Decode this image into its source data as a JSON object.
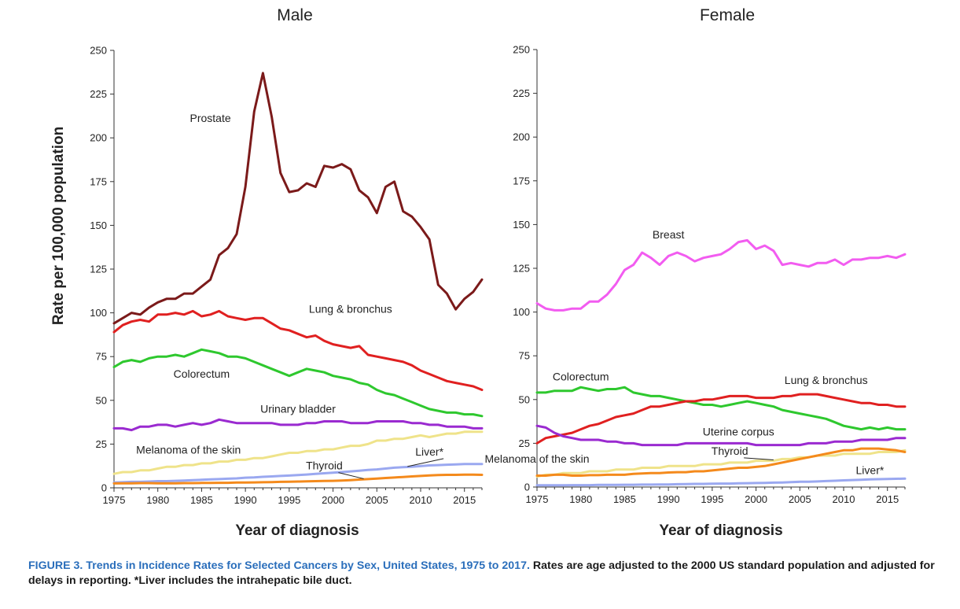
{
  "y_axis_title": "Rate per 100,000 population",
  "caption": {
    "figure_label": "FIGURE 3.",
    "title": "Trends in Incidence Rates for Selected Cancers by Sex, United States, 1975 to 2017.",
    "text": "Rates are age adjusted to the 2000 US standard population and adjusted for delays in reporting. *Liver includes the intrahepatic bile duct."
  },
  "chart_data": [
    {
      "type": "line",
      "title": "Male",
      "xlabel": "Year of diagnosis",
      "ylabel": "Rate per 100,000 population",
      "xlim": [
        1975,
        2017
      ],
      "ylim": [
        0,
        250
      ],
      "x_ticks": [
        1975,
        1980,
        1985,
        1990,
        1995,
        2000,
        2005,
        2010,
        2015
      ],
      "y_ticks": [
        0,
        25,
        50,
        75,
        100,
        125,
        150,
        175,
        200,
        225,
        250
      ],
      "grid": false,
      "legend": "none",
      "x": [
        1975,
        1976,
        1977,
        1978,
        1979,
        1980,
        1981,
        1982,
        1983,
        1984,
        1985,
        1986,
        1987,
        1988,
        1989,
        1990,
        1991,
        1992,
        1993,
        1994,
        1995,
        1996,
        1997,
        1998,
        1999,
        2000,
        2001,
        2002,
        2003,
        2004,
        2005,
        2006,
        2007,
        2008,
        2009,
        2010,
        2011,
        2012,
        2013,
        2014,
        2015,
        2016,
        2017
      ],
      "series": [
        {
          "name": "Prostate",
          "color": "#7b1a1a",
          "values": [
            94,
            97,
            100,
            99,
            103,
            106,
            108,
            108,
            111,
            111,
            115,
            119,
            133,
            137,
            145,
            172,
            215,
            237,
            212,
            180,
            169,
            170,
            174,
            172,
            184,
            183,
            185,
            182,
            170,
            166,
            157,
            172,
            175,
            158,
            155,
            149,
            142,
            116,
            111,
            102,
            108,
            112,
            119
          ]
        },
        {
          "name": "Lung & bronchus",
          "color": "#e02020",
          "values": [
            89,
            93,
            95,
            96,
            95,
            99,
            99,
            100,
            99,
            101,
            98,
            99,
            101,
            98,
            97,
            96,
            97,
            97,
            94,
            91,
            90,
            88,
            86,
            87,
            84,
            82,
            81,
            80,
            81,
            76,
            75,
            74,
            73,
            72,
            70,
            67,
            65,
            63,
            61,
            60,
            59,
            58,
            56
          ]
        },
        {
          "name": "Colorectum",
          "color": "#2ec82e",
          "values": [
            69,
            72,
            73,
            72,
            74,
            75,
            75,
            76,
            75,
            77,
            79,
            78,
            77,
            75,
            75,
            74,
            72,
            70,
            68,
            66,
            64,
            66,
            68,
            67,
            66,
            64,
            63,
            62,
            60,
            59,
            56,
            54,
            53,
            51,
            49,
            47,
            45,
            44,
            43,
            43,
            42,
            42,
            41
          ]
        },
        {
          "name": "Urinary bladder",
          "color": "#9a2ad0",
          "values": [
            34,
            34,
            33,
            35,
            35,
            36,
            36,
            35,
            36,
            37,
            36,
            37,
            39,
            38,
            37,
            37,
            37,
            37,
            37,
            36,
            36,
            36,
            37,
            37,
            38,
            38,
            38,
            37,
            37,
            37,
            38,
            38,
            38,
            38,
            37,
            37,
            36,
            36,
            35,
            35,
            35,
            34,
            34
          ]
        },
        {
          "name": "Melanoma of the skin",
          "color": "#efe38a",
          "values": [
            8,
            9,
            9,
            10,
            10,
            11,
            12,
            12,
            13,
            13,
            14,
            14,
            15,
            15,
            16,
            16,
            17,
            17,
            18,
            19,
            20,
            20,
            21,
            21,
            22,
            22,
            23,
            24,
            24,
            25,
            27,
            27,
            28,
            28,
            29,
            30,
            29,
            30,
            31,
            31,
            32,
            32,
            32
          ]
        },
        {
          "name": "Liver*",
          "color": "#9aa8f0",
          "values": [
            3,
            3.2,
            3.4,
            3.4,
            3.6,
            3.8,
            3.8,
            4,
            4.2,
            4.4,
            4.6,
            4.8,
            5,
            5.2,
            5.4,
            5.8,
            6,
            6.3,
            6.5,
            6.8,
            7,
            7.3,
            7.6,
            8,
            8.3,
            8.7,
            9,
            9.4,
            9.8,
            10.2,
            10.5,
            11,
            11.5,
            11.8,
            12,
            12.4,
            12.8,
            13,
            13.2,
            13.4,
            13.6,
            13.6,
            13.6
          ]
        },
        {
          "name": "Thyroid",
          "color": "#f48a1c",
          "values": [
            2.5,
            2.6,
            2.6,
            2.7,
            2.7,
            2.6,
            2.6,
            2.6,
            2.7,
            2.7,
            2.8,
            2.8,
            2.9,
            2.9,
            3,
            3,
            3.1,
            3.2,
            3.3,
            3.4,
            3.5,
            3.6,
            3.7,
            3.8,
            3.9,
            4,
            4.2,
            4.4,
            4.7,
            5,
            5.3,
            5.6,
            5.9,
            6.2,
            6.5,
            6.8,
            7.1,
            7.3,
            7.4,
            7.4,
            7.5,
            7.5,
            7.4
          ]
        }
      ],
      "annotations": [
        {
          "text": "Prostate",
          "x": 1986,
          "y": 209
        },
        {
          "text": "Lung & bronchus",
          "x": 2002,
          "y": 100
        },
        {
          "text": "Colorectum",
          "x": 1985,
          "y": 63
        },
        {
          "text": "Urinary bladder",
          "x": 1996,
          "y": 43
        },
        {
          "text": "Melanoma of the skin",
          "x": 1983.5,
          "y": 19.5
        },
        {
          "text": "Liver*",
          "x": 2011,
          "y": 18.5
        },
        {
          "text": "Thyroid",
          "x": 1999,
          "y": 10.5
        }
      ]
    },
    {
      "type": "line",
      "title": "Female",
      "xlabel": "Year of diagnosis",
      "ylabel": "",
      "xlim": [
        1975,
        2017
      ],
      "ylim": [
        0,
        250
      ],
      "x_ticks": [
        1975,
        1980,
        1985,
        1990,
        1995,
        2000,
        2005,
        2010,
        2015
      ],
      "y_ticks": [
        0,
        25,
        50,
        75,
        100,
        125,
        150,
        175,
        200,
        225,
        250
      ],
      "grid": false,
      "legend": "none",
      "x": [
        1975,
        1976,
        1977,
        1978,
        1979,
        1980,
        1981,
        1982,
        1983,
        1984,
        1985,
        1986,
        1987,
        1988,
        1989,
        1990,
        1991,
        1992,
        1993,
        1994,
        1995,
        1996,
        1997,
        1998,
        1999,
        2000,
        2001,
        2002,
        2003,
        2004,
        2005,
        2006,
        2007,
        2008,
        2009,
        2010,
        2011,
        2012,
        2013,
        2014,
        2015,
        2016,
        2017
      ],
      "series": [
        {
          "name": "Breast",
          "color": "#f25cf0",
          "values": [
            105,
            102,
            101,
            101,
            102,
            102,
            106,
            106,
            110,
            116,
            124,
            127,
            134,
            131,
            127,
            132,
            134,
            132,
            129,
            131,
            132,
            133,
            136,
            140,
            141,
            136,
            138,
            135,
            127,
            128,
            127,
            126,
            128,
            128,
            130,
            127,
            130,
            130,
            131,
            131,
            132,
            131,
            133
          ]
        },
        {
          "name": "Colorectum",
          "color": "#2ec82e",
          "values": [
            54,
            54,
            55,
            55,
            55,
            57,
            56,
            55,
            56,
            56,
            57,
            54,
            53,
            52,
            52,
            51,
            50,
            49,
            48,
            47,
            47,
            46,
            47,
            48,
            49,
            48,
            47,
            46,
            44,
            43,
            42,
            41,
            40,
            39,
            37,
            35,
            34,
            33,
            34,
            33,
            34,
            33,
            33
          ]
        },
        {
          "name": "Lung & bronchus",
          "color": "#e02020",
          "values": [
            25,
            28,
            29,
            30,
            31,
            33,
            35,
            36,
            38,
            40,
            41,
            42,
            44,
            46,
            46,
            47,
            48,
            49,
            49,
            50,
            50,
            51,
            52,
            52,
            52,
            51,
            51,
            51,
            52,
            52,
            53,
            53,
            53,
            52,
            51,
            50,
            49,
            48,
            48,
            47,
            47,
            46,
            46
          ]
        },
        {
          "name": "Uterine corpus",
          "color": "#9a2ad0",
          "values": [
            35,
            34,
            31,
            29,
            28,
            27,
            27,
            27,
            26,
            26,
            25,
            25,
            24,
            24,
            24,
            24,
            24,
            25,
            25,
            25,
            25,
            25,
            25,
            25,
            25,
            24,
            24,
            24,
            24,
            24,
            24,
            25,
            25,
            25,
            26,
            26,
            26,
            27,
            27,
            27,
            27,
            28,
            28
          ]
        },
        {
          "name": "Melanoma of the skin",
          "color": "#efe38a",
          "values": [
            6,
            7,
            7,
            8,
            8,
            8,
            9,
            9,
            9,
            10,
            10,
            10,
            11,
            11,
            11,
            12,
            12,
            12,
            12,
            13,
            13,
            13,
            14,
            14,
            14,
            15,
            15,
            15,
            16,
            16,
            17,
            17,
            18,
            18,
            18,
            19,
            19,
            19,
            19,
            20,
            20,
            20,
            21
          ]
        },
        {
          "name": "Thyroid",
          "color": "#f48a1c",
          "values": [
            6.5,
            6.5,
            7,
            7,
            6.5,
            6.5,
            6.8,
            6.8,
            7,
            7,
            7,
            7.5,
            7.8,
            8,
            8,
            8.3,
            8.5,
            8.5,
            9,
            9,
            9.5,
            10,
            10.5,
            11,
            11,
            11.5,
            12,
            13,
            14,
            15,
            16,
            17,
            18,
            19,
            20,
            21,
            21,
            22,
            22,
            22,
            21.5,
            21,
            20
          ]
        },
        {
          "name": "Liver*",
          "color": "#9aa8f0",
          "values": [
            1,
            1,
            1,
            1,
            1.1,
            1.1,
            1.1,
            1.2,
            1.2,
            1.2,
            1.3,
            1.3,
            1.4,
            1.4,
            1.5,
            1.5,
            1.6,
            1.7,
            1.8,
            1.8,
            1.9,
            2,
            2,
            2.1,
            2.2,
            2.3,
            2.4,
            2.5,
            2.6,
            2.8,
            3,
            3,
            3.2,
            3.4,
            3.6,
            3.8,
            4,
            4.2,
            4.4,
            4.5,
            4.6,
            4.7,
            4.8
          ]
        }
      ],
      "annotations": [
        {
          "text": "Breast",
          "x": 1990,
          "y": 142
        },
        {
          "text": "Colorectum",
          "x": 1980,
          "y": 61
        },
        {
          "text": "Lung & bronchus",
          "x": 2008,
          "y": 59
        },
        {
          "text": "Uterine corpus",
          "x": 1998,
          "y": 29.5
        },
        {
          "text": "Melanoma of the skin",
          "x": 1975,
          "y": 14
        },
        {
          "text": "Thyroid",
          "x": 1997,
          "y": 18.5
        },
        {
          "text": "Liver*",
          "x": 2013,
          "y": 7.5
        }
      ]
    }
  ]
}
